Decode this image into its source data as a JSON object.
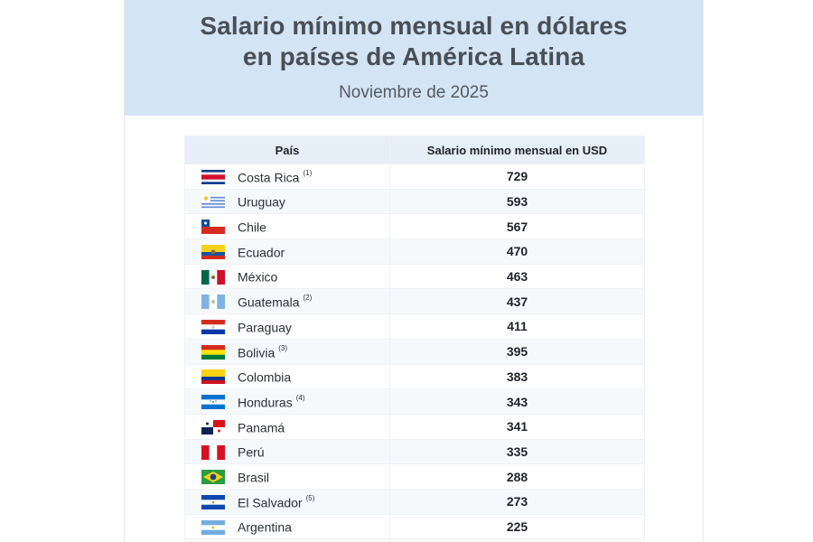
{
  "header": {
    "title_line1": "Salario mínimo mensual en dólares",
    "title_line2": "en países de América Latina",
    "subtitle": "Noviembre de 2025"
  },
  "table": {
    "columns": [
      "País",
      "Salario mínimo mensual en USD"
    ],
    "rows": [
      {
        "country": "Costa Rica",
        "note": "(1)",
        "salary": "729",
        "flag": "costa-rica-flag-icon"
      },
      {
        "country": "Uruguay",
        "note": "",
        "salary": "593",
        "flag": "uruguay-flag-icon"
      },
      {
        "country": "Chile",
        "note": "",
        "salary": "567",
        "flag": "chile-flag-icon"
      },
      {
        "country": "Ecuador",
        "note": "",
        "salary": "470",
        "flag": "ecuador-flag-icon"
      },
      {
        "country": "México",
        "note": "",
        "salary": "463",
        "flag": "mexico-flag-icon"
      },
      {
        "country": "Guatemala",
        "note": "(2)",
        "salary": "437",
        "flag": "guatemala-flag-icon"
      },
      {
        "country": "Paraguay",
        "note": "",
        "salary": "411",
        "flag": "paraguay-flag-icon"
      },
      {
        "country": "Bolivia",
        "note": "(3)",
        "salary": "395",
        "flag": "bolivia-flag-icon"
      },
      {
        "country": "Colombia",
        "note": "",
        "salary": "383",
        "flag": "colombia-flag-icon"
      },
      {
        "country": "Honduras",
        "note": "(4)",
        "salary": "343",
        "flag": "honduras-flag-icon"
      },
      {
        "country": "Panamá",
        "note": "",
        "salary": "341",
        "flag": "panama-flag-icon"
      },
      {
        "country": "Perú",
        "note": "",
        "salary": "335",
        "flag": "peru-flag-icon"
      },
      {
        "country": "Brasil",
        "note": "",
        "salary": "288",
        "flag": "brazil-flag-icon"
      },
      {
        "country": "El Salvador",
        "note": "(5)",
        "salary": "273",
        "flag": "el-salvador-flag-icon"
      },
      {
        "country": "Argentina",
        "note": "",
        "salary": "225",
        "flag": "argentina-flag-icon"
      }
    ]
  }
}
